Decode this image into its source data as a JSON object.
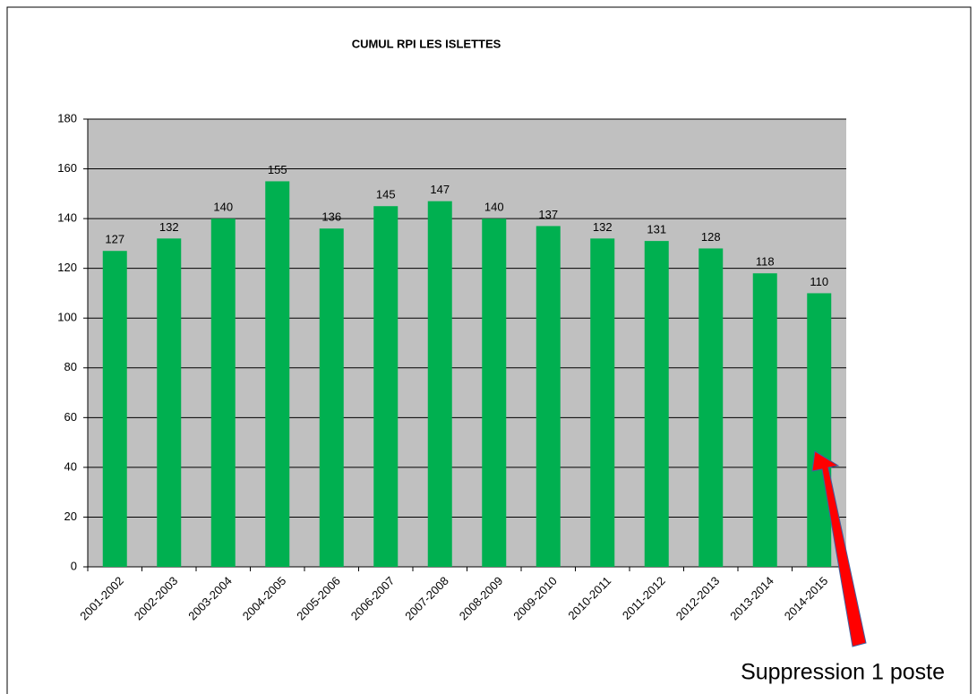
{
  "chart_data": {
    "type": "bar",
    "title": "CUMUL RPI LES ISLETTES",
    "categories": [
      "2001-2002",
      "2002-2003",
      "2003-2004",
      "2004-2005",
      "2005-2006",
      "2006-2007",
      "2007-2008",
      "2008-2009",
      "2009-2010",
      "2010-2011",
      "2011-2012",
      "2012-2013",
      "2013-2014",
      "2014-2015"
    ],
    "values": [
      127,
      132,
      140,
      155,
      136,
      145,
      147,
      140,
      137,
      132,
      131,
      128,
      118,
      110
    ],
    "color": "#00b050",
    "ylim": [
      0,
      180
    ],
    "yticks": [
      0,
      20,
      40,
      60,
      80,
      100,
      120,
      140,
      160,
      180
    ],
    "grid": true,
    "annotation": "Suppression 1 poste"
  }
}
